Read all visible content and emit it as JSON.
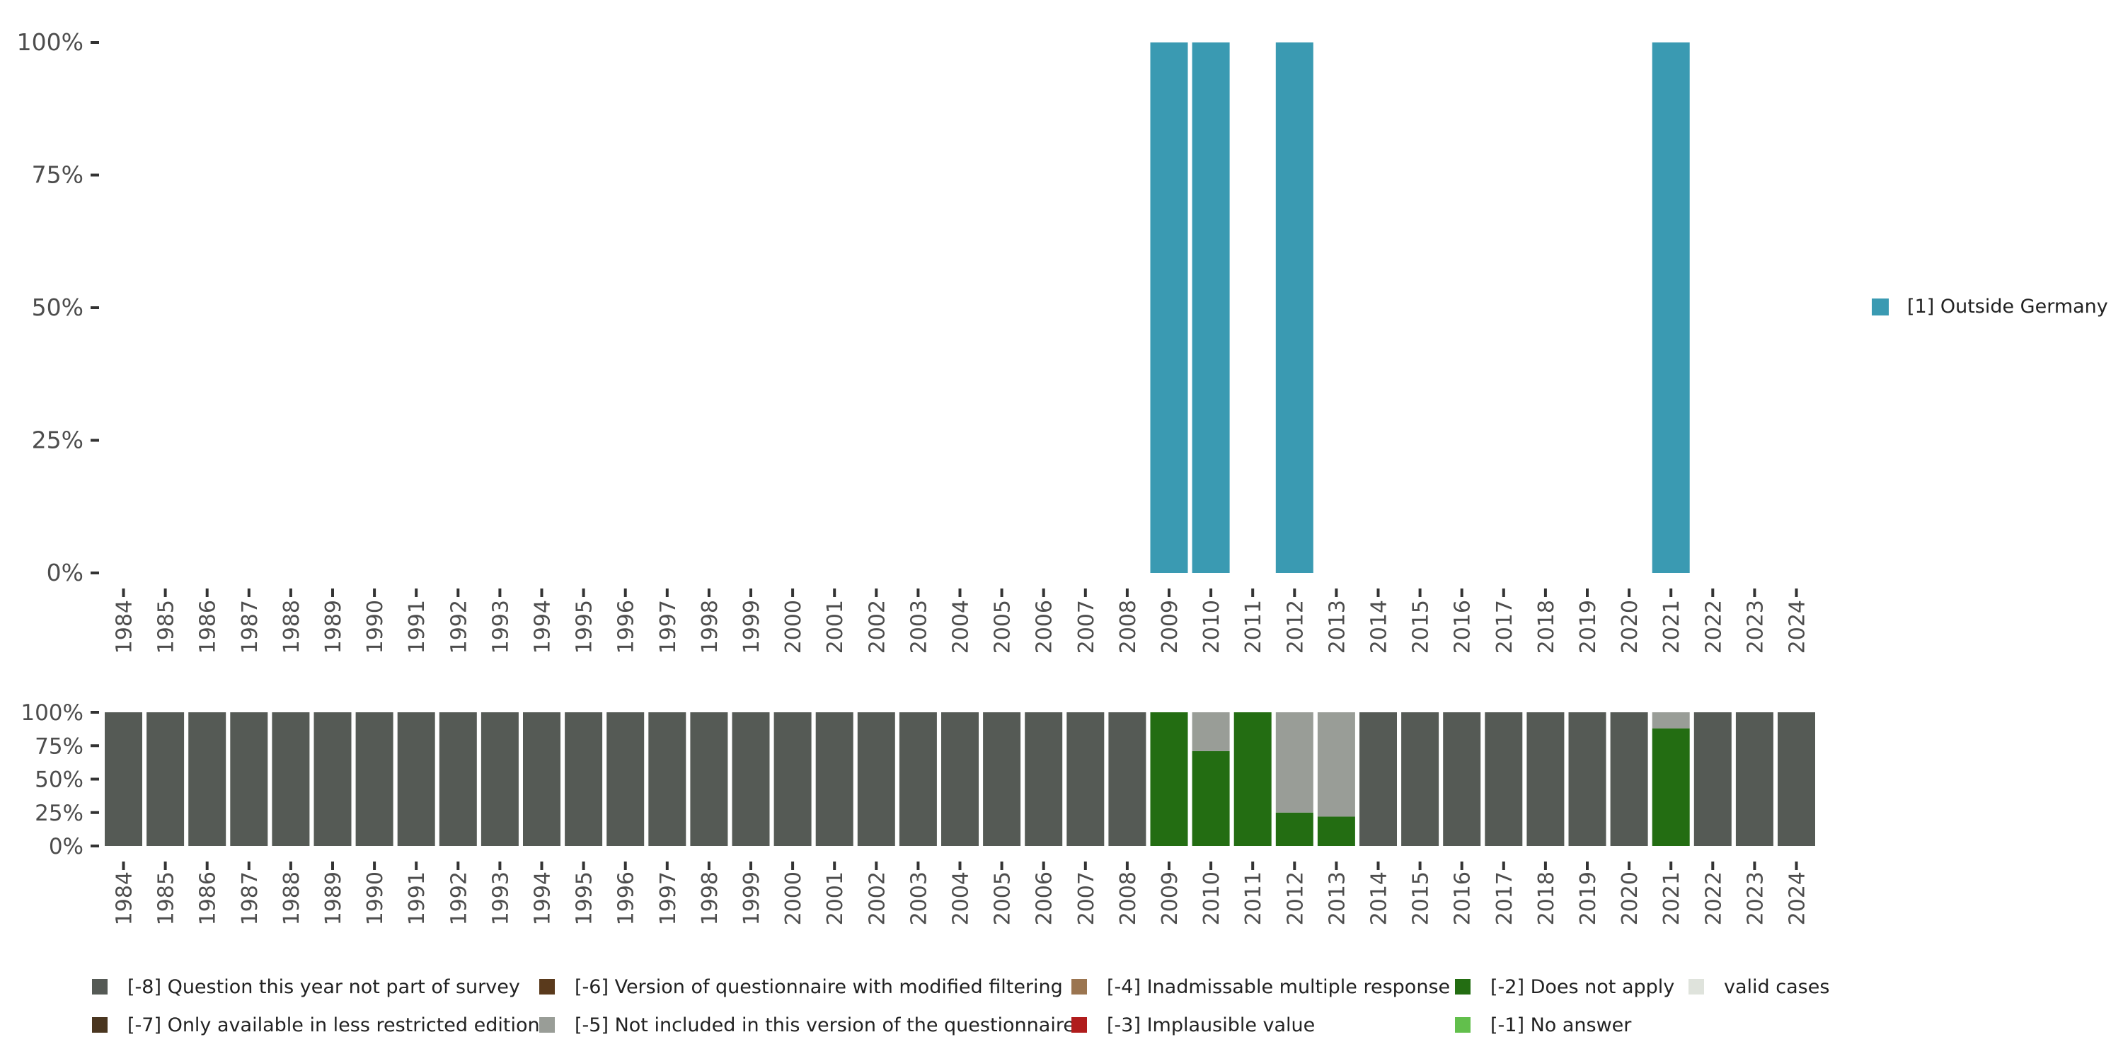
{
  "chart_data": [
    {
      "type": "bar",
      "ylim": [
        0,
        100
      ],
      "y_ticks": [
        "0%",
        "25%",
        "50%",
        "75%",
        "100%"
      ],
      "categories": [
        "1984",
        "1985",
        "1986",
        "1987",
        "1988",
        "1989",
        "1990",
        "1991",
        "1992",
        "1993",
        "1994",
        "1995",
        "1996",
        "1997",
        "1998",
        "1999",
        "2000",
        "2001",
        "2002",
        "2003",
        "2004",
        "2005",
        "2006",
        "2007",
        "2008",
        "2009",
        "2010",
        "2011",
        "2012",
        "2013",
        "2014",
        "2015",
        "2016",
        "2017",
        "2018",
        "2019",
        "2020",
        "2021",
        "2022",
        "2023",
        "2024"
      ],
      "series": [
        {
          "name": "[1] Outside Germany",
          "color": "#3a9ab2",
          "values": [
            0,
            0,
            0,
            0,
            0,
            0,
            0,
            0,
            0,
            0,
            0,
            0,
            0,
            0,
            0,
            0,
            0,
            0,
            0,
            0,
            0,
            0,
            0,
            0,
            0,
            100,
            100,
            0,
            100,
            0,
            0,
            0,
            0,
            0,
            0,
            0,
            0,
            100,
            0,
            0,
            0
          ]
        }
      ],
      "legend_position": "right"
    },
    {
      "type": "stacked_bar",
      "ylim": [
        0,
        100
      ],
      "y_ticks": [
        "0%",
        "25%",
        "50%",
        "75%",
        "100%"
      ],
      "categories": [
        "1984",
        "1985",
        "1986",
        "1987",
        "1988",
        "1989",
        "1990",
        "1991",
        "1992",
        "1993",
        "1994",
        "1995",
        "1996",
        "1997",
        "1998",
        "1999",
        "2000",
        "2001",
        "2002",
        "2003",
        "2004",
        "2005",
        "2006",
        "2007",
        "2008",
        "2009",
        "2010",
        "2011",
        "2012",
        "2013",
        "2014",
        "2015",
        "2016",
        "2017",
        "2018",
        "2019",
        "2020",
        "2021",
        "2022",
        "2023",
        "2024"
      ],
      "series": [
        {
          "name": "[-2] Does not apply",
          "color": "#236d12",
          "values": [
            0,
            0,
            0,
            0,
            0,
            0,
            0,
            0,
            0,
            0,
            0,
            0,
            0,
            0,
            0,
            0,
            0,
            0,
            0,
            0,
            0,
            0,
            0,
            0,
            0,
            100,
            71,
            100,
            25,
            22,
            0,
            0,
            0,
            0,
            0,
            0,
            0,
            88,
            0,
            0,
            0
          ]
        },
        {
          "name": "[-5] Not included in this version of the questionnaire",
          "color": "#999d97",
          "values": [
            0,
            0,
            0,
            0,
            0,
            0,
            0,
            0,
            0,
            0,
            0,
            0,
            0,
            0,
            0,
            0,
            0,
            0,
            0,
            0,
            0,
            0,
            0,
            0,
            0,
            0,
            29,
            0,
            75,
            78,
            0,
            0,
            0,
            0,
            0,
            0,
            0,
            12,
            0,
            0,
            0
          ]
        },
        {
          "name": "[-8] Question this year not part of survey",
          "color": "#555a55",
          "values": [
            100,
            100,
            100,
            100,
            100,
            100,
            100,
            100,
            100,
            100,
            100,
            100,
            100,
            100,
            100,
            100,
            100,
            100,
            100,
            100,
            100,
            100,
            100,
            100,
            100,
            0,
            0,
            0,
            0,
            0,
            100,
            100,
            100,
            100,
            100,
            100,
            100,
            0,
            100,
            100,
            100
          ]
        }
      ],
      "legend_position": "bottom"
    }
  ],
  "legend": {
    "items": [
      {
        "label": "[-8] Question this year not part of survey",
        "color": "#555a55"
      },
      {
        "label": "[-6] Version of questionnaire with modified filtering",
        "color": "#5a3a1c"
      },
      {
        "label": "[-4] Inadmissable multiple response",
        "color": "#9b7550"
      },
      {
        "label": "[-2] Does not apply",
        "color": "#236d12"
      },
      {
        "label": "valid cases",
        "color": "#dfe3dc"
      },
      {
        "label": "[-7] Only available in less restricted edition",
        "color": "#4a3620"
      },
      {
        "label": "[-5] Not included in this version of the questionnaire",
        "color": "#999d97"
      },
      {
        "label": "[-3] Implausible value",
        "color": "#b01c1c"
      },
      {
        "label": "[-1] No answer",
        "color": "#62bf4c"
      }
    ]
  }
}
